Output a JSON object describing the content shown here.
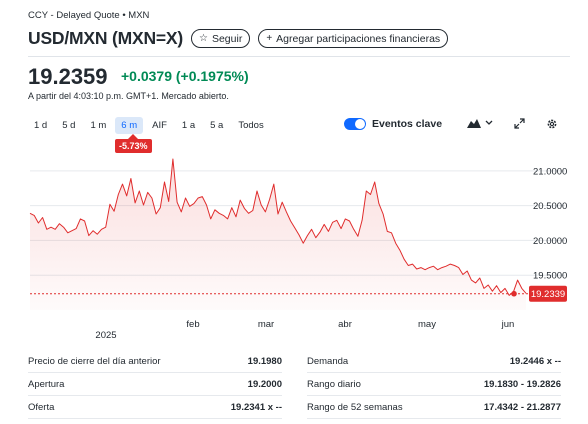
{
  "header": {
    "source_line": "CCY - Delayed Quote • MXN",
    "title": "USD/MXN (MXN=X)",
    "follow_icon": "star-icon",
    "follow_label": "Seguir",
    "add_icon": "plus-icon",
    "add_label": "Agregar participaciones financieras"
  },
  "quote": {
    "price": "19.2359",
    "change": "+0.0379 (+0.1975%)",
    "as_of": "A partir del 4:03:10 p.m. GMT+1. Mercado abierto.",
    "change_color": "#008a55"
  },
  "ranges": [
    "1 d",
    "5 d",
    "1 m",
    "6 m",
    "AIF",
    "1 a",
    "5 a",
    "Todos"
  ],
  "active_range": "6 m",
  "range_badge": "-5.73%",
  "toolbar": {
    "events_label": "Eventos clave",
    "events_on": true,
    "chart_type_icon": "mountain-chart-icon",
    "dropdown_icon": "chevron-down-icon",
    "expand_icon": "expand-icon",
    "settings_icon": "gear-icon"
  },
  "chart_data": {
    "type": "area",
    "x_tick_labels": [
      "2025",
      "feb",
      "mar",
      "abr",
      "may",
      "jun"
    ],
    "y_ticks": [
      "21.0000",
      "20.5000",
      "20.0000",
      "19.5000"
    ],
    "ylim": [
      19.0,
      21.3
    ],
    "current_value_label": "19.2339",
    "reference_value": 19.2339,
    "line_color": "#e02d2d",
    "values": [
      20.39,
      20.36,
      20.25,
      20.33,
      20.16,
      20.19,
      20.16,
      20.24,
      20.19,
      20.11,
      20.14,
      20.17,
      20.31,
      20.28,
      20.07,
      20.14,
      20.09,
      20.16,
      20.19,
      20.52,
      20.42,
      20.66,
      20.81,
      20.64,
      20.89,
      20.54,
      20.71,
      20.51,
      20.69,
      20.61,
      20.38,
      20.47,
      20.84,
      20.56,
      21.17,
      20.55,
      20.41,
      20.61,
      20.49,
      20.53,
      20.61,
      20.63,
      20.51,
      20.31,
      20.44,
      20.39,
      20.36,
      20.31,
      20.47,
      20.34,
      20.58,
      20.46,
      20.39,
      20.43,
      20.71,
      20.51,
      20.41,
      20.59,
      20.81,
      20.38,
      20.55,
      20.41,
      20.28,
      20.18,
      20.08,
      19.96,
      20.07,
      20.16,
      20.04,
      20.12,
      20.23,
      20.13,
      20.26,
      20.29,
      20.17,
      20.31,
      20.28,
      20.16,
      20.06,
      20.29,
      20.71,
      20.66,
      20.84,
      20.53,
      20.38,
      20.13,
      20.11,
      19.96,
      19.86,
      19.73,
      19.64,
      19.66,
      19.59,
      19.61,
      19.58,
      19.61,
      19.63,
      19.58,
      19.61,
      19.63,
      19.66,
      19.64,
      19.61,
      19.51,
      19.56,
      19.43,
      19.39,
      19.46,
      19.31,
      19.36,
      19.27,
      19.35,
      19.25,
      19.31,
      19.21,
      19.26,
      19.43,
      19.31,
      19.24
    ]
  },
  "stats": {
    "left": [
      {
        "label": "Precio de cierre del día anterior",
        "value": "19.1980"
      },
      {
        "label": "Apertura",
        "value": "19.2000"
      },
      {
        "label": "Oferta",
        "value": "19.2341 x --"
      }
    ],
    "right": [
      {
        "label": "Demanda",
        "value": "19.2446 x --"
      },
      {
        "label": "Rango diario",
        "value": "19.1830 - 19.2826"
      },
      {
        "label": "Rango de 52 semanas",
        "value": "17.4342 - 21.2877"
      }
    ]
  }
}
